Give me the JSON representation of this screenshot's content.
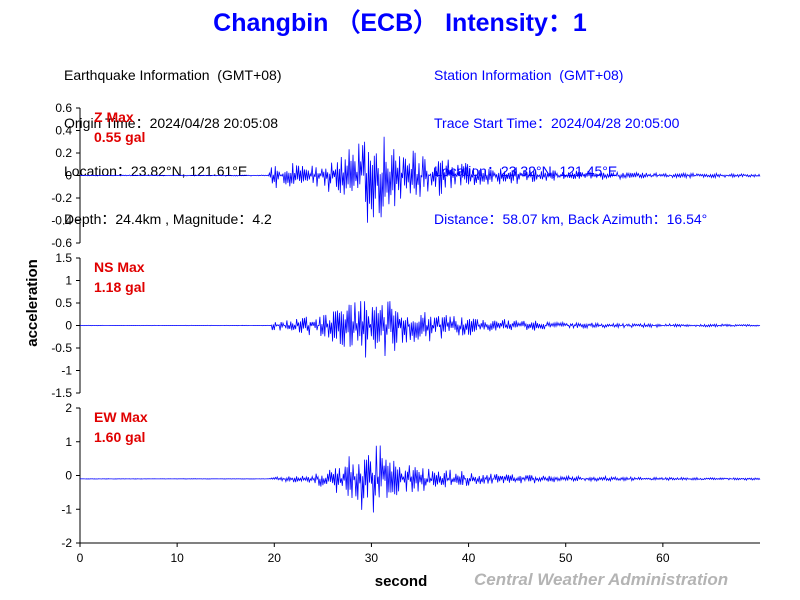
{
  "title": "Changbin （ECB） Intensity：1",
  "earthquake": {
    "header": "Earthquake Information  (GMT+08)",
    "origin_time": "Origin Time：2024/04/28 20:05:08",
    "location": "Location：23.82°N, 121.61°E",
    "depth_magnitude": "Depth：24.4km , Magnitude：4.2"
  },
  "station": {
    "header": "Station Information  (GMT+08)",
    "trace_start": "Trace Start Time：2024/04/28 20:05:00",
    "location": "Location：23.32°N, 121.45°E",
    "distance": "Distance：58.07 km, Back Azimuth：16.54°"
  },
  "footer": "Central Weather Administration",
  "colors": {
    "title": "#0000ff",
    "trace": "#0000ff",
    "peak_label": "#e00000",
    "footer": "#b4b4b4"
  },
  "chart_data": {
    "type": "line",
    "xlabel": "second",
    "ylabel": "acceleration",
    "xlim": [
      0,
      70
    ],
    "x_ticks": [
      0,
      10,
      20,
      30,
      40,
      50,
      60
    ],
    "sample_interval_s": 0.1,
    "panels": [
      {
        "name": "Z",
        "peak_label": "Z Max",
        "peak_value": "0.55 gal",
        "peak": 0.55,
        "ylim": [
          -0.6,
          0.6
        ],
        "y_ticks": [
          -0.6,
          -0.4,
          -0.2,
          0,
          0.2,
          0.4,
          0.6
        ],
        "y_tick_labels": [
          "-0.6",
          "-0.4",
          "-0.2",
          "0",
          "0.2",
          "0.4",
          "0.6"
        ],
        "baseline": 0,
        "envelope": [
          [
            0,
            0.005
          ],
          [
            19.4,
            0.005
          ],
          [
            19.6,
            0.15
          ],
          [
            24,
            0.12
          ],
          [
            27,
            0.25
          ],
          [
            30.5,
            0.5
          ],
          [
            33,
            0.3
          ],
          [
            37,
            0.2
          ],
          [
            42,
            0.1
          ],
          [
            50,
            0.05
          ],
          [
            60,
            0.025
          ],
          [
            70,
            0.02
          ]
        ]
      },
      {
        "name": "NS",
        "peak_label": "NS Max",
        "peak_value": "1.18 gal",
        "peak": 1.18,
        "ylim": [
          -1.5,
          1.5
        ],
        "y_ticks": [
          -1.5,
          -1,
          -0.5,
          0,
          0.5,
          1,
          1.5
        ],
        "y_tick_labels": [
          "-1.5",
          "-1",
          "-0.5",
          "0",
          "0.5",
          "1",
          "1.5"
        ],
        "baseline": 0,
        "envelope": [
          [
            0,
            0.005
          ],
          [
            19.6,
            0.005
          ],
          [
            19.8,
            0.12
          ],
          [
            24,
            0.25
          ],
          [
            27,
            0.55
          ],
          [
            29,
            0.9
          ],
          [
            31,
            0.8
          ],
          [
            34,
            0.5
          ],
          [
            38,
            0.3
          ],
          [
            44,
            0.15
          ],
          [
            52,
            0.07
          ],
          [
            60,
            0.04
          ],
          [
            70,
            0.03
          ]
        ]
      },
      {
        "name": "EW",
        "peak_label": "EW Max",
        "peak_value": "1.60 gal",
        "peak": 1.6,
        "ylim": [
          -2,
          2
        ],
        "y_ticks": [
          -2,
          -1,
          0,
          1,
          2
        ],
        "y_tick_labels": [
          "-2",
          "-1",
          "0",
          "1",
          "2"
        ],
        "baseline": -0.1,
        "envelope": [
          [
            0,
            0.005
          ],
          [
            19.4,
            0.005
          ],
          [
            19.6,
            0.08
          ],
          [
            24,
            0.15
          ],
          [
            27,
            0.6
          ],
          [
            28.5,
            1.1
          ],
          [
            30,
            1.4
          ],
          [
            32,
            0.7
          ],
          [
            36,
            0.4
          ],
          [
            42,
            0.2
          ],
          [
            50,
            0.1
          ],
          [
            60,
            0.05
          ],
          [
            70,
            0.04
          ]
        ]
      }
    ]
  }
}
